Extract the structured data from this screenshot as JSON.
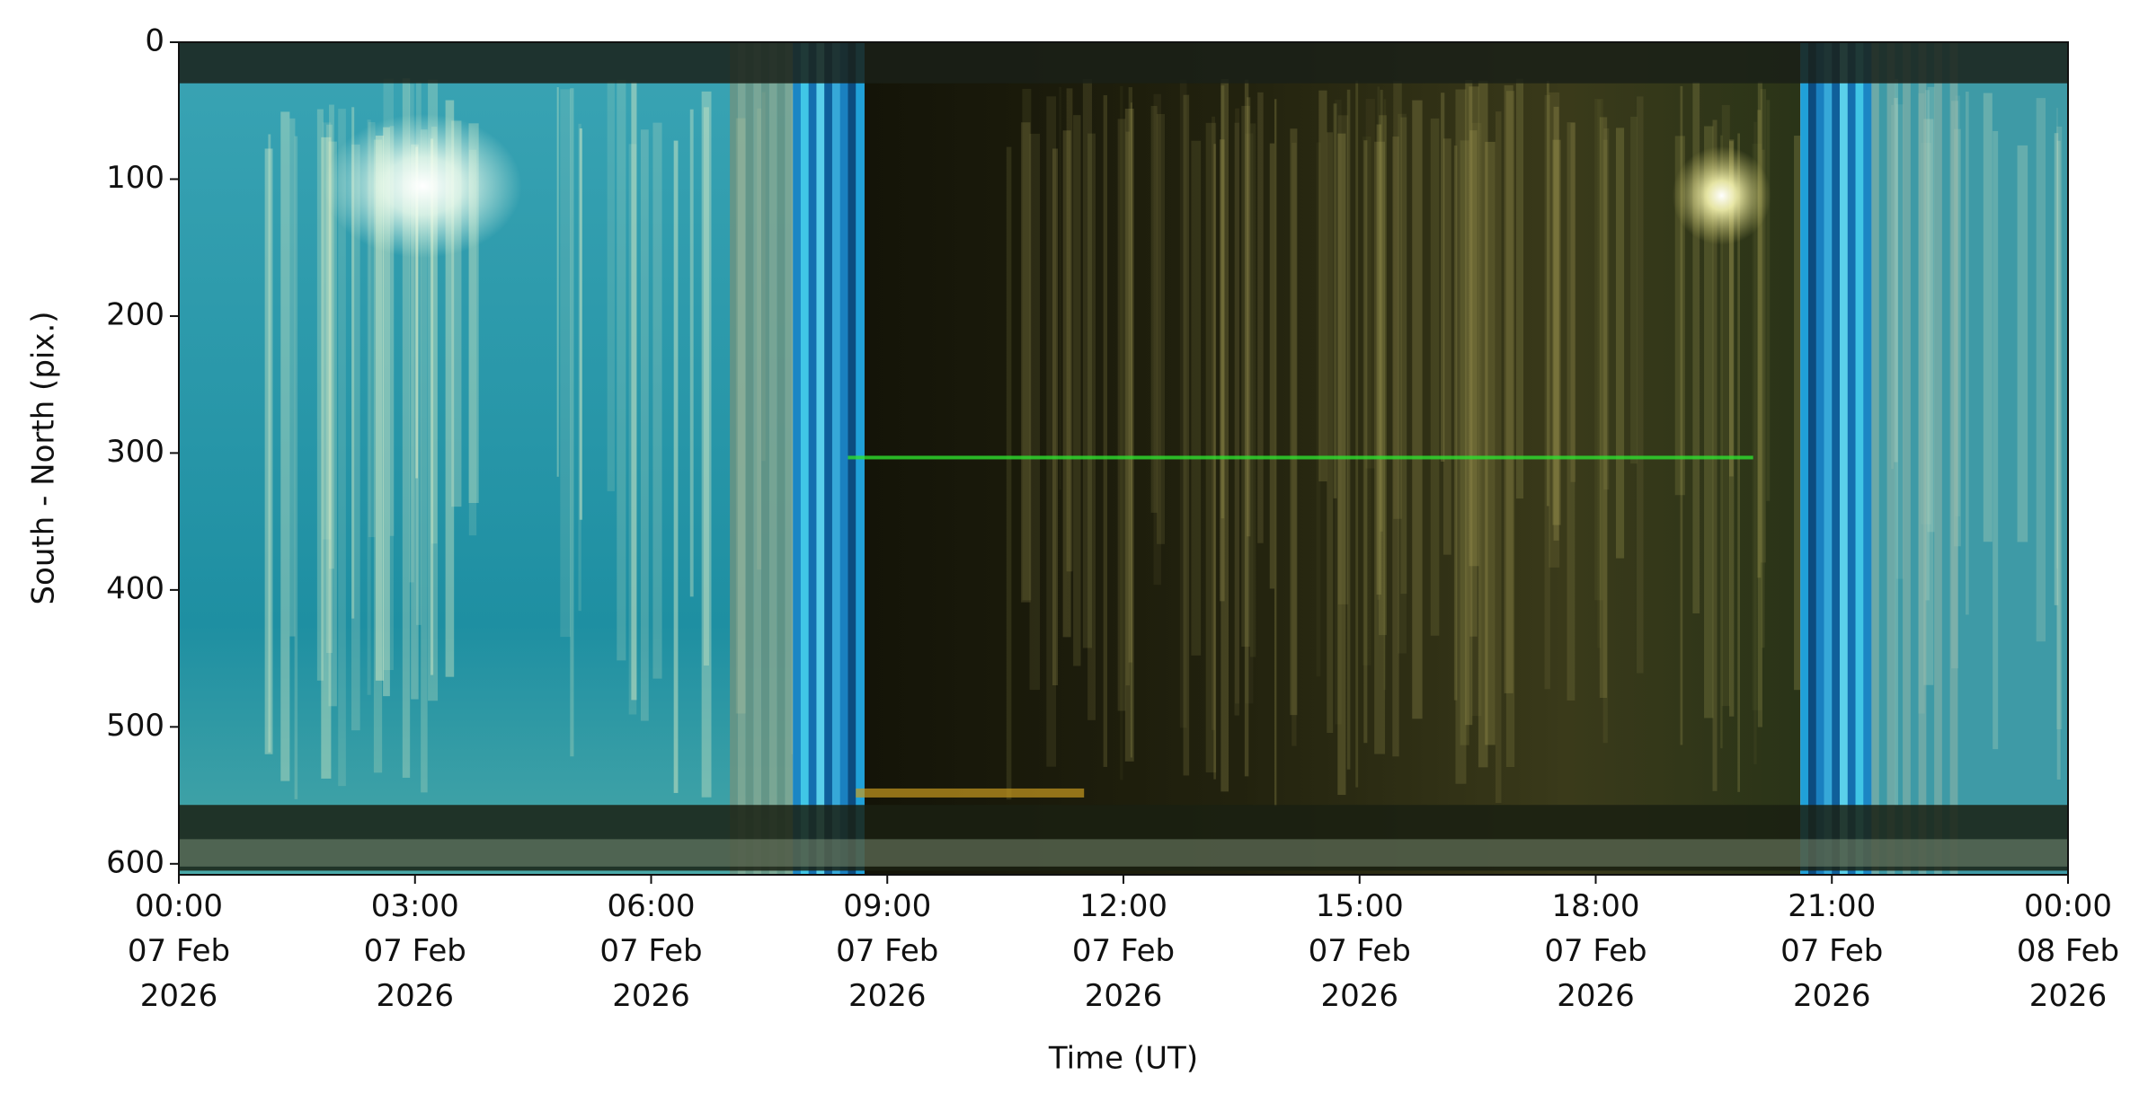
{
  "chart_data": {
    "type": "keogram",
    "xlabel": "Time (UT)",
    "ylabel": "South - North (pix.)",
    "xlim": [
      "2026-02-07T00:00",
      "2026-02-08T00:00"
    ],
    "xticks": [
      {
        "value": "2026-02-07T00:00",
        "label": "00:00\n07 Feb\n2026"
      },
      {
        "value": "2026-02-07T03:00",
        "label": "03:00\n07 Feb\n2026"
      },
      {
        "value": "2026-02-07T06:00",
        "label": "06:00\n07 Feb\n2026"
      },
      {
        "value": "2026-02-07T09:00",
        "label": "09:00\n07 Feb\n2026"
      },
      {
        "value": "2026-02-07T12:00",
        "label": "12:00\n07 Feb\n2026"
      },
      {
        "value": "2026-02-07T15:00",
        "label": "15:00\n07 Feb\n2026"
      },
      {
        "value": "2026-02-07T18:00",
        "label": "18:00\n07 Feb\n2026"
      },
      {
        "value": "2026-02-07T21:00",
        "label": "21:00\n07 Feb\n2026"
      },
      {
        "value": "2026-02-08T00:00",
        "label": "00:00\n08 Feb\n2026"
      }
    ],
    "ylim": [
      608,
      0
    ],
    "yticks": [
      0,
      100,
      200,
      300,
      400,
      500,
      600
    ]
  }
}
